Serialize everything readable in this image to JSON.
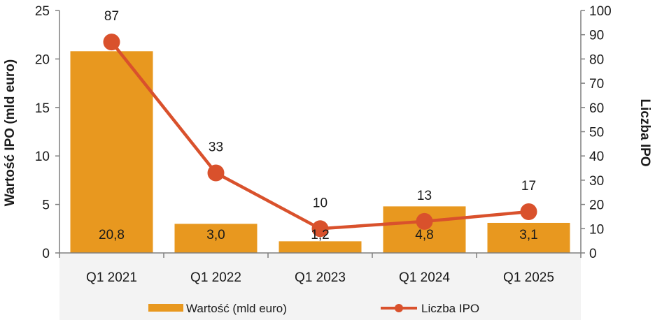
{
  "chart_data": {
    "type": "bar+line",
    "categories": [
      "Q1 2021",
      "Q1 2022",
      "Q1 2023",
      "Q1 2024",
      "Q1 2025"
    ],
    "series": [
      {
        "name": "Wartość (mld euro)",
        "type": "bar",
        "axis": "left",
        "values": [
          20.8,
          3.0,
          1.2,
          4.8,
          3.1
        ],
        "labels": [
          "20,8",
          "3,0",
          "1,2",
          "4,8",
          "3,1"
        ],
        "color": "#E8981F"
      },
      {
        "name": "Liczba IPO",
        "type": "line",
        "axis": "right",
        "values": [
          87,
          33,
          10,
          13,
          17
        ],
        "labels": [
          "87",
          "33",
          "10",
          "13",
          "17"
        ],
        "color": "#D9512C"
      }
    ],
    "ylabel": "Wartość IPO (mld euro)",
    "y2label": "Liczba IPO",
    "ylim": [
      0,
      25
    ],
    "y2lim": [
      0,
      100
    ],
    "yticks": [
      "0",
      "5",
      "10",
      "15",
      "20",
      "25"
    ],
    "y2ticks": [
      "0",
      "10",
      "20",
      "30",
      "40",
      "50",
      "60",
      "70",
      "80",
      "90",
      "100"
    ],
    "grid": false,
    "legend": "bottom"
  }
}
